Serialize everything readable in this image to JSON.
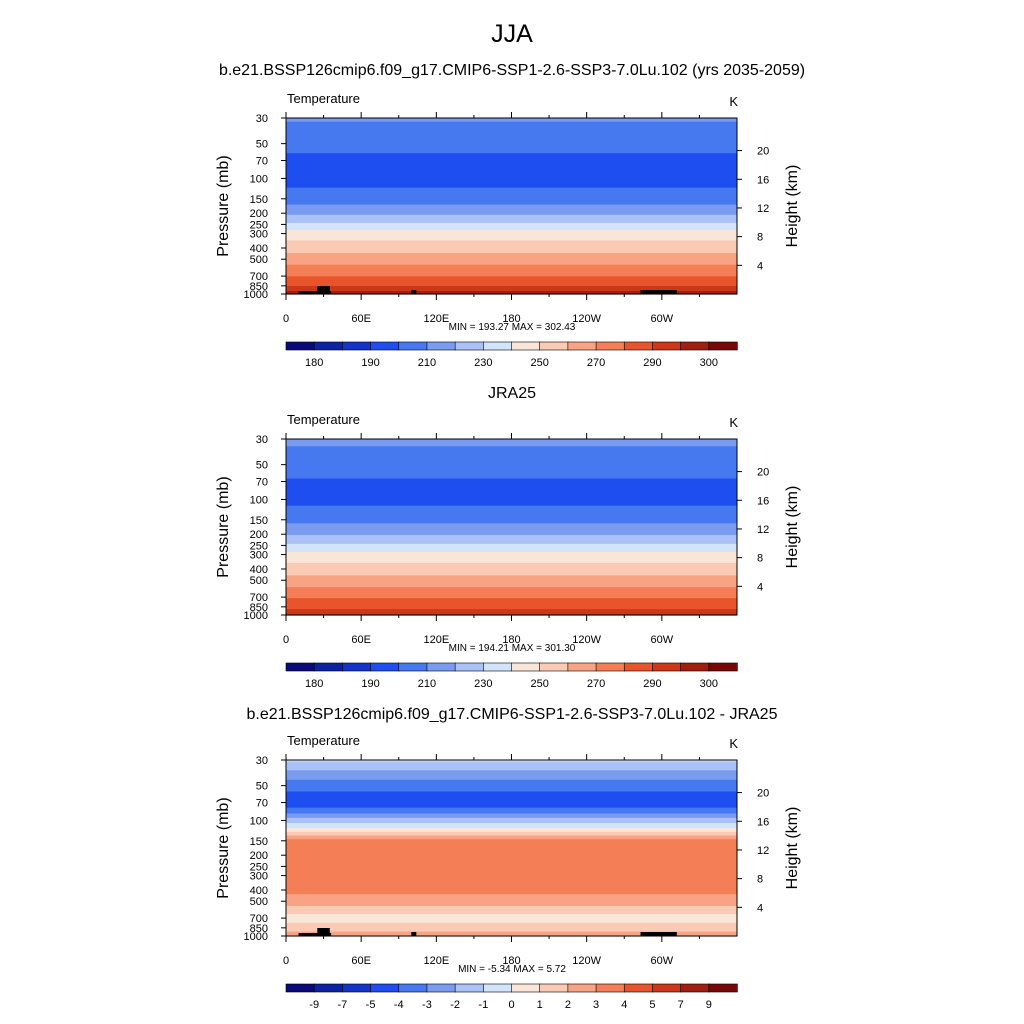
{
  "figure": {
    "title": "JJA"
  },
  "colors": {
    "temperature_scale": [
      "#0a0a78",
      "#0c22a0",
      "#1434c8",
      "#1e4ef0",
      "#4678f0",
      "#7a9cf0",
      "#aac2f8",
      "#d2e4fa",
      "#fae6d8",
      "#facab4",
      "#f8a484",
      "#f47e56",
      "#e8542c",
      "#cc3818",
      "#a02010",
      "#780808"
    ],
    "difference_scale": [
      "#0a0a78",
      "#0c22a0",
      "#1434c8",
      "#1e4ef0",
      "#4678f0",
      "#7a9cf0",
      "#aac2f8",
      "#d2e4fa",
      "#fae6d8",
      "#facab4",
      "#f8a484",
      "#f47e56",
      "#e8542c",
      "#cc3818",
      "#a02010",
      "#780808"
    ],
    "topography": "#000000"
  },
  "chart_data": [
    {
      "type": "heatmap",
      "title": "b.e21.BSSP126cmip6.f09_g17.CMIP6-SSP1-2.6-SSP3-7.0Lu.102 (yrs 2035-2059)",
      "left_label": "Temperature",
      "units": "K",
      "ylabel": "Pressure (mb)",
      "y2label": "Height (km)",
      "x_tick_labels": [
        "0",
        "60E",
        "120E",
        "180",
        "120W",
        "60W"
      ],
      "x_tick_lon": [
        0,
        60,
        120,
        180,
        240,
        300
      ],
      "xlim": [
        0,
        360
      ],
      "y_tick_labels": [
        "30",
        "50",
        "70",
        "100",
        "150",
        "200",
        "250",
        "300",
        "400",
        "500",
        "700",
        "850",
        "1000"
      ],
      "y_ticks": [
        30,
        50,
        70,
        100,
        150,
        200,
        250,
        300,
        400,
        500,
        700,
        850,
        1000
      ],
      "ylim": [
        1000,
        30
      ],
      "y_scale": "log",
      "height_ticks": [
        4,
        8,
        12,
        16,
        20
      ],
      "min_max_text": "MIN = 193.27  MAX = 302.43",
      "colorbar_labels": [
        "180",
        "190",
        "210",
        "230",
        "250",
        "270",
        "290",
        "300"
      ],
      "profile": [
        {
          "p": 30,
          "value": 211
        },
        {
          "p": 50,
          "value": 204
        },
        {
          "p": 70,
          "value": 197
        },
        {
          "p": 100,
          "value": 196
        },
        {
          "p": 150,
          "value": 205
        },
        {
          "p": 200,
          "value": 218
        },
        {
          "p": 250,
          "value": 232
        },
        {
          "p": 300,
          "value": 244
        },
        {
          "p": 400,
          "value": 256
        },
        {
          "p": 500,
          "value": 265
        },
        {
          "p": 700,
          "value": 280
        },
        {
          "p": 850,
          "value": 290
        },
        {
          "p": 1000,
          "value": 298
        }
      ]
    },
    {
      "type": "heatmap",
      "title": "JRA25",
      "left_label": "Temperature",
      "units": "K",
      "ylabel": "Pressure (mb)",
      "y2label": "Height (km)",
      "x_tick_labels": [
        "0",
        "60E",
        "120E",
        "180",
        "120W",
        "60W"
      ],
      "x_tick_lon": [
        0,
        60,
        120,
        180,
        240,
        300
      ],
      "xlim": [
        0,
        360
      ],
      "y_tick_labels": [
        "30",
        "50",
        "70",
        "100",
        "150",
        "200",
        "250",
        "300",
        "400",
        "500",
        "700",
        "850",
        "1000"
      ],
      "y_ticks": [
        30,
        50,
        70,
        100,
        150,
        200,
        250,
        300,
        400,
        500,
        700,
        850,
        1000
      ],
      "ylim": [
        1000,
        30
      ],
      "y_scale": "log",
      "height_ticks": [
        4,
        8,
        12,
        16,
        20
      ],
      "min_max_text": "MIN = 194.21  MAX = 301.30",
      "colorbar_labels": [
        "180",
        "190",
        "210",
        "230",
        "250",
        "270",
        "290",
        "300"
      ],
      "profile": [
        {
          "p": 30,
          "value": 212
        },
        {
          "p": 50,
          "value": 205
        },
        {
          "p": 70,
          "value": 199
        },
        {
          "p": 100,
          "value": 197
        },
        {
          "p": 150,
          "value": 207
        },
        {
          "p": 200,
          "value": 219
        },
        {
          "p": 250,
          "value": 232
        },
        {
          "p": 300,
          "value": 243
        },
        {
          "p": 400,
          "value": 255
        },
        {
          "p": 500,
          "value": 264
        },
        {
          "p": 700,
          "value": 279
        },
        {
          "p": 850,
          "value": 288
        },
        {
          "p": 1000,
          "value": 296
        }
      ]
    },
    {
      "type": "heatmap",
      "title": "b.e21.BSSP126cmip6.f09_g17.CMIP6-SSP1-2.6-SSP3-7.0Lu.102 - JRA25",
      "left_label": "Temperature",
      "units": "K",
      "ylabel": "Pressure (mb)",
      "y2label": "Height (km)",
      "x_tick_labels": [
        "0",
        "60E",
        "120E",
        "180",
        "120W",
        "60W"
      ],
      "x_tick_lon": [
        0,
        60,
        120,
        180,
        240,
        300
      ],
      "xlim": [
        0,
        360
      ],
      "y_tick_labels": [
        "30",
        "50",
        "70",
        "100",
        "150",
        "200",
        "250",
        "300",
        "400",
        "500",
        "700",
        "850",
        "1000"
      ],
      "y_ticks": [
        30,
        50,
        70,
        100,
        150,
        200,
        250,
        300,
        400,
        500,
        700,
        850,
        1000
      ],
      "ylim": [
        1000,
        30
      ],
      "y_scale": "log",
      "height_ticks": [
        4,
        8,
        12,
        16,
        20
      ],
      "min_max_text": "MIN =  -5.34  MAX =   5.72",
      "colorbar_labels": [
        "-9",
        "-7",
        "-5",
        "-4",
        "-3",
        "-2",
        "-1",
        "0",
        "1",
        "2",
        "3",
        "4",
        "5",
        "7",
        "9"
      ],
      "profile": [
        {
          "p": 30,
          "value": -0.8
        },
        {
          "p": 40,
          "value": -2.5
        },
        {
          "p": 50,
          "value": -3.5
        },
        {
          "p": 70,
          "value": -5.0
        },
        {
          "p": 85,
          "value": -3.2
        },
        {
          "p": 100,
          "value": -1.5
        },
        {
          "p": 120,
          "value": 0.3
        },
        {
          "p": 150,
          "value": 3.5
        },
        {
          "p": 200,
          "value": 3.5
        },
        {
          "p": 300,
          "value": 3.4
        },
        {
          "p": 400,
          "value": 3.3
        },
        {
          "p": 500,
          "value": 2.5
        },
        {
          "p": 600,
          "value": 1.5
        },
        {
          "p": 700,
          "value": 0.5
        },
        {
          "p": 850,
          "value": 1.5
        },
        {
          "p": 1000,
          "value": 2.5
        }
      ]
    }
  ]
}
